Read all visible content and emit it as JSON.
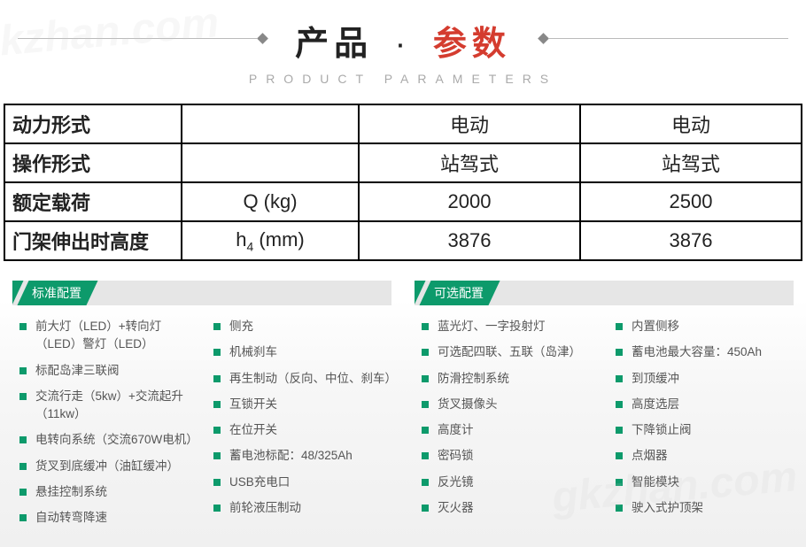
{
  "title": {
    "part1": "产品",
    "separator": "·",
    "part2": "参数",
    "subtitle": "PRODUCT PARAMETERS"
  },
  "table": {
    "rows": [
      {
        "label": "动力形式",
        "unit": "",
        "v1": "电动",
        "v2": "电动"
      },
      {
        "label": "操作形式",
        "unit": "",
        "v1": "站驾式",
        "v2": "站驾式"
      },
      {
        "label": "额定载荷",
        "unit": "Q  (kg)",
        "v1": "2000",
        "v2": "2500"
      },
      {
        "label": "门架伸出时高度",
        "unit_html": "h4 (mm)",
        "v1": "3876",
        "v2": "3876"
      }
    ]
  },
  "standard": {
    "header": "标准配置",
    "col1": [
      "前大灯（LED）+转向灯（LED）警灯（LED）",
      "标配岛津三联阀",
      "交流行走（5kw）+交流起升（11kw）",
      "电转向系统（交流670W电机）",
      "货叉到底缓冲（油缸缓冲）",
      "悬挂控制系统",
      "自动转弯降速"
    ],
    "col2": [
      "侧充",
      "机械刹车",
      "再生制动（反向、中位、刹车）",
      "互锁开关",
      "在位开关",
      "蓄电池标配：48/325Ah",
      "USB充电口",
      "前轮液压制动"
    ]
  },
  "optional": {
    "header": "可选配置",
    "col1": [
      "蓝光灯、一字投射灯",
      "可选配四联、五联（岛津）",
      "防滑控制系统",
      "货叉摄像头",
      "高度计",
      "密码锁",
      "反光镜",
      "灭火器"
    ],
    "col2": [
      "内置侧移",
      "蓄电池最大容量：450Ah",
      "到顶缓冲",
      "高度选层",
      "下降锁止阀",
      "点烟器",
      "智能模块",
      "驶入式护顶架"
    ]
  },
  "colors": {
    "accent_green": "#0d9a6b",
    "accent_red": "#d43c2f",
    "text_dark": "#222222",
    "text_grey": "#555555",
    "subtitle_grey": "#aaaaaa",
    "header_grey": "#e6e6e6",
    "border_black": "#000000"
  },
  "watermark": "gkzhan.com"
}
